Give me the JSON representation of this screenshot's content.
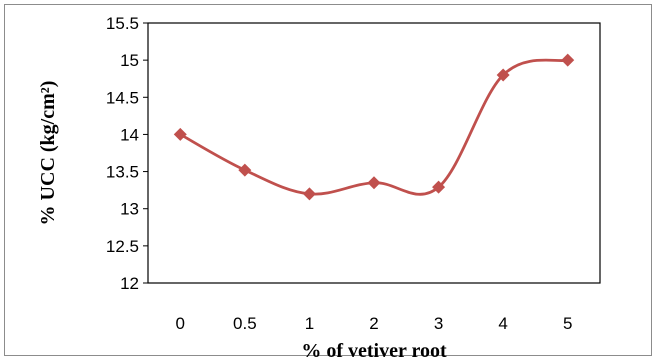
{
  "chart_data": {
    "type": "line",
    "title": "",
    "xlabel": "% of vetiver root",
    "ylabel": "% UCC (kg/cm²)",
    "categories": [
      "0",
      "0.5",
      "1",
      "2",
      "3",
      "4",
      "5"
    ],
    "series": [
      {
        "values": [
          14.0,
          13.52,
          13.2,
          13.35,
          13.29,
          14.8,
          15.0
        ]
      }
    ],
    "yticks": [
      "12",
      "12.5",
      "13",
      "13.5",
      "14",
      "14.5",
      "15",
      "15.5"
    ],
    "ylim": [
      12,
      15.5
    ],
    "grid": false,
    "legend": false,
    "line_color": "#c0504d",
    "marker": "diamond",
    "smoothed": true
  }
}
